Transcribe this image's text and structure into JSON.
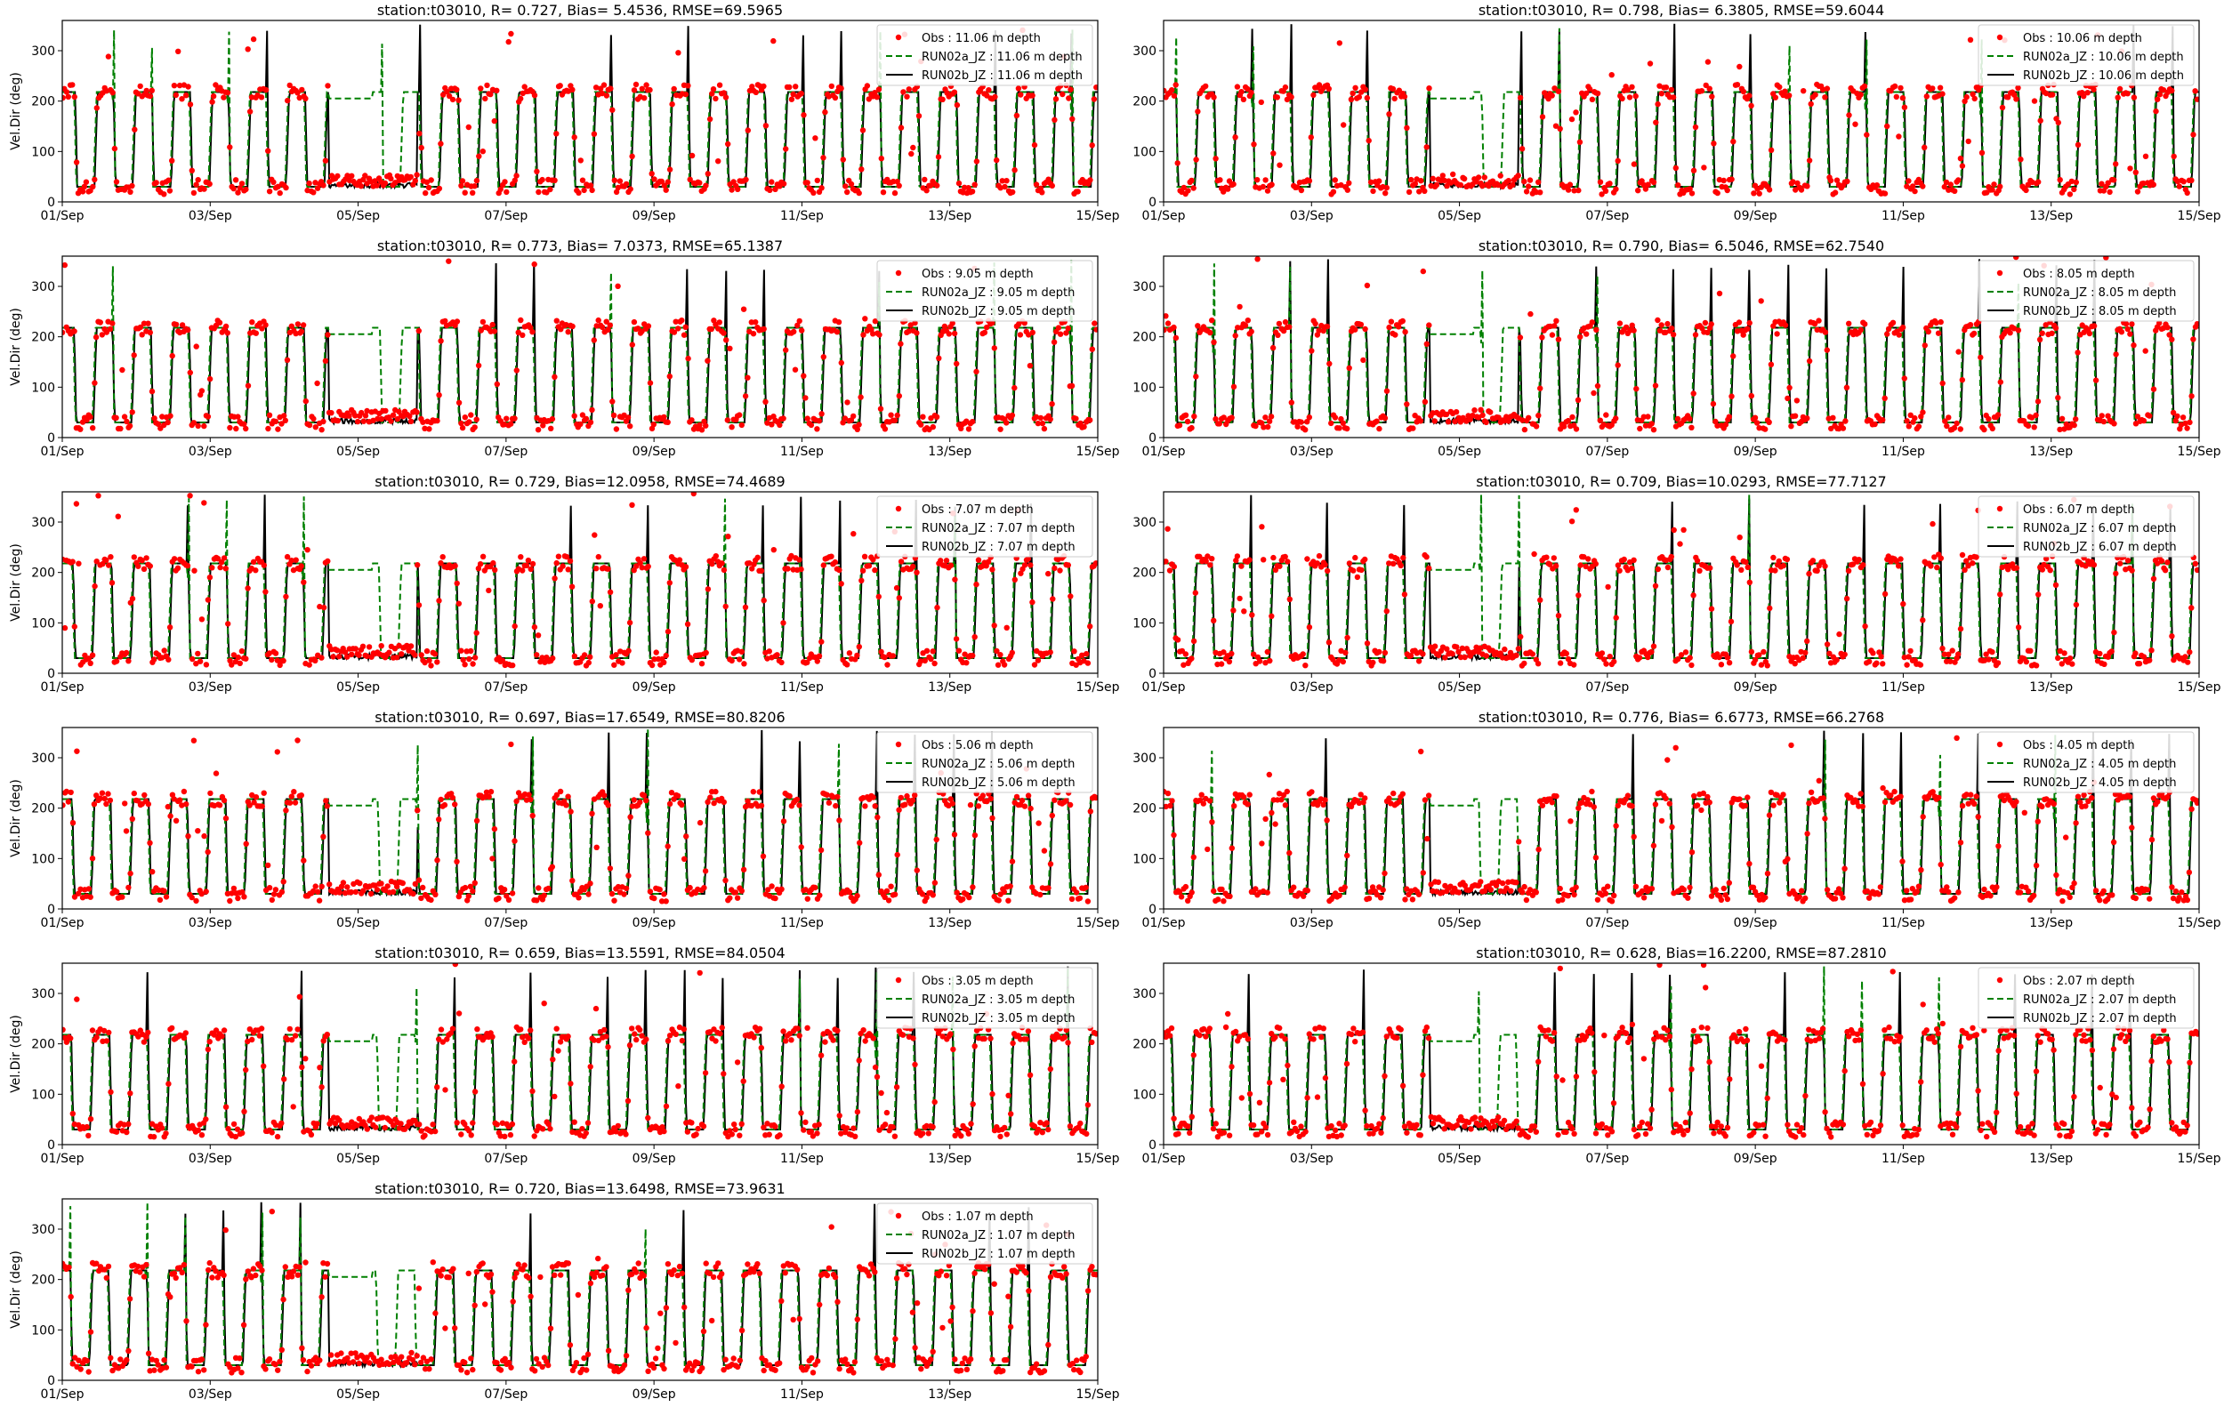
{
  "figure": {
    "colors": {
      "obs": "#ff0000",
      "run02a": "#008000",
      "run02b": "#000000"
    },
    "legend_markers": {
      "obs": "red-dot",
      "run02a": "green-dashed-line",
      "run02b": "black-solid-line"
    }
  },
  "chart_data": [
    {
      "type": "line",
      "title": "station:t03010, R= 0.727, Bias= 5.4536, RMSE=69.5965",
      "ylabel": "Vel.Dir (deg)",
      "xlabel": "",
      "xlim": [
        "2021-09-01",
        "2021-09-15"
      ],
      "ylim": [
        0,
        360
      ],
      "x_ticks": [
        "01/Sep",
        "03/Sep",
        "05/Sep",
        "07/Sep",
        "09/Sep",
        "11/Sep",
        "13/Sep",
        "15/Sep"
      ],
      "y_ticks": [
        0,
        100,
        200,
        300
      ],
      "legend": "top-right",
      "grid": false,
      "series": [
        {
          "name": "Obs : 11.06 m depth",
          "style": "scatter"
        },
        {
          "name": "RUN02a_JZ : 11.06 m depth",
          "style": "dashed"
        },
        {
          "name": "RUN02b_JZ : 11.06 m depth",
          "style": "solid"
        }
      ]
    },
    {
      "type": "line",
      "title": "station:t03010, R= 0.798, Bias= 6.3805, RMSE=59.6044",
      "ylabel": "",
      "xlabel": "",
      "xlim": [
        "2021-09-01",
        "2021-09-15"
      ],
      "ylim": [
        0,
        360
      ],
      "x_ticks": [
        "01/Sep",
        "03/Sep",
        "05/Sep",
        "07/Sep",
        "09/Sep",
        "11/Sep",
        "13/Sep",
        "15/Sep"
      ],
      "y_ticks": [
        0,
        100,
        200,
        300
      ],
      "legend": "top-right",
      "grid": false,
      "series": [
        {
          "name": "Obs : 10.06 m depth",
          "style": "scatter"
        },
        {
          "name": "RUN02a_JZ : 10.06 m depth",
          "style": "dashed"
        },
        {
          "name": "RUN02b_JZ : 10.06 m depth",
          "style": "solid"
        }
      ]
    },
    {
      "type": "line",
      "title": "station:t03010, R= 0.773, Bias= 7.0373, RMSE=65.1387",
      "ylabel": "Vel.Dir (deg)",
      "xlabel": "",
      "xlim": [
        "2021-09-01",
        "2021-09-15"
      ],
      "ylim": [
        0,
        360
      ],
      "x_ticks": [
        "01/Sep",
        "03/Sep",
        "05/Sep",
        "07/Sep",
        "09/Sep",
        "11/Sep",
        "13/Sep",
        "15/Sep"
      ],
      "y_ticks": [
        0,
        100,
        200,
        300
      ],
      "legend": "top-right",
      "grid": false,
      "series": [
        {
          "name": "Obs : 9.05 m depth",
          "style": "scatter"
        },
        {
          "name": "RUN02a_JZ : 9.05 m depth",
          "style": "dashed"
        },
        {
          "name": "RUN02b_JZ : 9.05 m depth",
          "style": "solid"
        }
      ]
    },
    {
      "type": "line",
      "title": "station:t03010, R= 0.790, Bias= 6.5046, RMSE=62.7540",
      "ylabel": "",
      "xlabel": "",
      "xlim": [
        "2021-09-01",
        "2021-09-15"
      ],
      "ylim": [
        0,
        360
      ],
      "x_ticks": [
        "01/Sep",
        "03/Sep",
        "05/Sep",
        "07/Sep",
        "09/Sep",
        "11/Sep",
        "13/Sep",
        "15/Sep"
      ],
      "y_ticks": [
        0,
        100,
        200,
        300
      ],
      "legend": "top-right",
      "grid": false,
      "series": [
        {
          "name": "Obs : 8.05 m depth",
          "style": "scatter"
        },
        {
          "name": "RUN02a_JZ : 8.05 m depth",
          "style": "dashed"
        },
        {
          "name": "RUN02b_JZ : 8.05 m depth",
          "style": "solid"
        }
      ]
    },
    {
      "type": "line",
      "title": "station:t03010, R= 0.729, Bias=12.0958, RMSE=74.4689",
      "ylabel": "Vel.Dir (deg)",
      "xlabel": "",
      "xlim": [
        "2021-09-01",
        "2021-09-15"
      ],
      "ylim": [
        0,
        360
      ],
      "x_ticks": [
        "01/Sep",
        "03/Sep",
        "05/Sep",
        "07/Sep",
        "09/Sep",
        "11/Sep",
        "13/Sep",
        "15/Sep"
      ],
      "y_ticks": [
        0,
        100,
        200,
        300
      ],
      "legend": "top-right",
      "grid": false,
      "series": [
        {
          "name": "Obs : 7.07 m depth",
          "style": "scatter"
        },
        {
          "name": "RUN02a_JZ : 7.07 m depth",
          "style": "dashed"
        },
        {
          "name": "RUN02b_JZ : 7.07 m depth",
          "style": "solid"
        }
      ]
    },
    {
      "type": "line",
      "title": "station:t03010, R= 0.709, Bias=10.0293, RMSE=77.7127",
      "ylabel": "",
      "xlabel": "",
      "xlim": [
        "2021-09-01",
        "2021-09-15"
      ],
      "ylim": [
        0,
        360
      ],
      "x_ticks": [
        "01/Sep",
        "03/Sep",
        "05/Sep",
        "07/Sep",
        "09/Sep",
        "11/Sep",
        "13/Sep",
        "15/Sep"
      ],
      "y_ticks": [
        0,
        100,
        200,
        300
      ],
      "legend": "top-right",
      "grid": false,
      "series": [
        {
          "name": "Obs : 6.07 m depth",
          "style": "scatter"
        },
        {
          "name": "RUN02a_JZ : 6.07 m depth",
          "style": "dashed"
        },
        {
          "name": "RUN02b_JZ : 6.07 m depth",
          "style": "solid"
        }
      ]
    },
    {
      "type": "line",
      "title": "station:t03010, R= 0.697, Bias=17.6549, RMSE=80.8206",
      "ylabel": "Vel.Dir (deg)",
      "xlabel": "",
      "xlim": [
        "2021-09-01",
        "2021-09-15"
      ],
      "ylim": [
        0,
        360
      ],
      "x_ticks": [
        "01/Sep",
        "03/Sep",
        "05/Sep",
        "07/Sep",
        "09/Sep",
        "11/Sep",
        "13/Sep",
        "15/Sep"
      ],
      "y_ticks": [
        0,
        100,
        200,
        300
      ],
      "legend": "top-right",
      "grid": false,
      "series": [
        {
          "name": "Obs : 5.06 m depth",
          "style": "scatter"
        },
        {
          "name": "RUN02a_JZ : 5.06 m depth",
          "style": "dashed"
        },
        {
          "name": "RUN02b_JZ : 5.06 m depth",
          "style": "solid"
        }
      ]
    },
    {
      "type": "line",
      "title": "station:t03010, R= 0.776, Bias= 6.6773, RMSE=66.2768",
      "ylabel": "",
      "xlabel": "",
      "xlim": [
        "2021-09-01",
        "2021-09-15"
      ],
      "ylim": [
        0,
        360
      ],
      "x_ticks": [
        "01/Sep",
        "03/Sep",
        "05/Sep",
        "07/Sep",
        "09/Sep",
        "11/Sep",
        "13/Sep",
        "15/Sep"
      ],
      "y_ticks": [
        0,
        100,
        200,
        300
      ],
      "legend": "top-right",
      "grid": false,
      "series": [
        {
          "name": "Obs : 4.05 m depth",
          "style": "scatter"
        },
        {
          "name": "RUN02a_JZ : 4.05 m depth",
          "style": "dashed"
        },
        {
          "name": "RUN02b_JZ : 4.05 m depth",
          "style": "solid"
        }
      ]
    },
    {
      "type": "line",
      "title": "station:t03010, R= 0.659, Bias=13.5591, RMSE=84.0504",
      "ylabel": "Vel.Dir (deg)",
      "xlabel": "",
      "xlim": [
        "2021-09-01",
        "2021-09-15"
      ],
      "ylim": [
        0,
        360
      ],
      "x_ticks": [
        "01/Sep",
        "03/Sep",
        "05/Sep",
        "07/Sep",
        "09/Sep",
        "11/Sep",
        "13/Sep",
        "15/Sep"
      ],
      "y_ticks": [
        0,
        100,
        200,
        300
      ],
      "legend": "top-right",
      "grid": false,
      "series": [
        {
          "name": "Obs : 3.05 m depth",
          "style": "scatter"
        },
        {
          "name": "RUN02a_JZ : 3.05 m depth",
          "style": "dashed"
        },
        {
          "name": "RUN02b_JZ : 3.05 m depth",
          "style": "solid"
        }
      ]
    },
    {
      "type": "line",
      "title": "station:t03010, R= 0.628, Bias=16.2200, RMSE=87.2810",
      "ylabel": "",
      "xlabel": "",
      "xlim": [
        "2021-09-01",
        "2021-09-15"
      ],
      "ylim": [
        0,
        360
      ],
      "x_ticks": [
        "01/Sep",
        "03/Sep",
        "05/Sep",
        "07/Sep",
        "09/Sep",
        "11/Sep",
        "13/Sep",
        "15/Sep"
      ],
      "y_ticks": [
        0,
        100,
        200,
        300
      ],
      "legend": "top-right",
      "grid": false,
      "series": [
        {
          "name": "Obs : 2.07 m depth",
          "style": "scatter"
        },
        {
          "name": "RUN02a_JZ : 2.07 m depth",
          "style": "dashed"
        },
        {
          "name": "RUN02b_JZ : 2.07 m depth",
          "style": "solid"
        }
      ]
    },
    {
      "type": "line",
      "title": "station:t03010, R= 0.720, Bias=13.6498, RMSE=73.9631",
      "ylabel": "Vel.Dir (deg)",
      "xlabel": "",
      "xlim": [
        "2021-09-01",
        "2021-09-15"
      ],
      "ylim": [
        0,
        360
      ],
      "x_ticks": [
        "01/Sep",
        "03/Sep",
        "05/Sep",
        "07/Sep",
        "09/Sep",
        "11/Sep",
        "13/Sep",
        "15/Sep"
      ],
      "y_ticks": [
        0,
        100,
        200,
        300
      ],
      "legend": "top-right",
      "grid": false,
      "series": [
        {
          "name": "Obs : 1.07 m depth",
          "style": "scatter"
        },
        {
          "name": "RUN02a_JZ : 1.07 m depth",
          "style": "dashed"
        },
        {
          "name": "RUN02b_JZ : 1.07 m depth",
          "style": "solid"
        }
      ]
    }
  ]
}
